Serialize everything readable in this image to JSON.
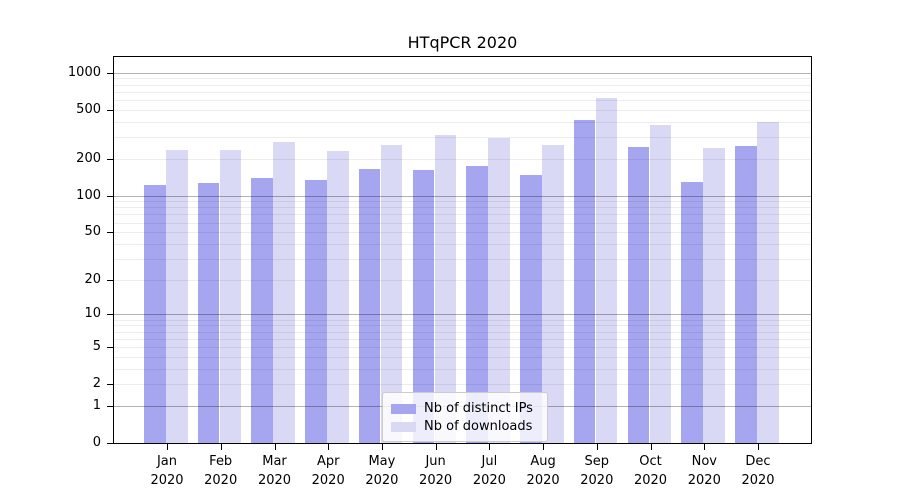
{
  "chart_data": {
    "type": "bar",
    "title": "HTqPCR 2020",
    "categories": [
      "Jan 2020",
      "Feb 2020",
      "Mar 2020",
      "Apr 2020",
      "May 2020",
      "Jun 2020",
      "Jul 2020",
      "Aug 2020",
      "Sep 2020",
      "Oct 2020",
      "Nov 2020",
      "Dec 2020"
    ],
    "months": [
      "Jan",
      "Feb",
      "Mar",
      "Apr",
      "May",
      "Jun",
      "Jul",
      "Aug",
      "Sep",
      "Oct",
      "Nov",
      "Dec"
    ],
    "year": "2020",
    "series": [
      {
        "name": "Nb of distinct IPs",
        "color": "#a5a5f0",
        "values": [
          122,
          127,
          139,
          133,
          164,
          162,
          175,
          148,
          415,
          251,
          130,
          253
        ]
      },
      {
        "name": "Nb of downloads",
        "color": "#d9d9f6",
        "values": [
          233,
          235,
          275,
          229,
          256,
          309,
          297,
          260,
          620,
          372,
          242,
          400
        ]
      }
    ],
    "yscale": "log1p",
    "ylim": [
      0,
      1336
    ],
    "yticks": [
      0,
      1,
      2,
      5,
      10,
      20,
      50,
      100,
      200,
      500,
      1000
    ],
    "ytick_labels": [
      "0",
      "1",
      "2",
      "5",
      "10",
      "20",
      "50",
      "100",
      "200",
      "500",
      "1000"
    ],
    "grid": "on",
    "major_grid_values": [
      1,
      10,
      100,
      1000
    ],
    "legend_position": "lower center",
    "xlabel": "",
    "ylabel": ""
  },
  "colors": {
    "background": "#ffffff",
    "bar_dark": "#a5a5f0",
    "bar_light": "#d9d9f6",
    "spine": "#000000",
    "legend_border": "#cccccc"
  }
}
